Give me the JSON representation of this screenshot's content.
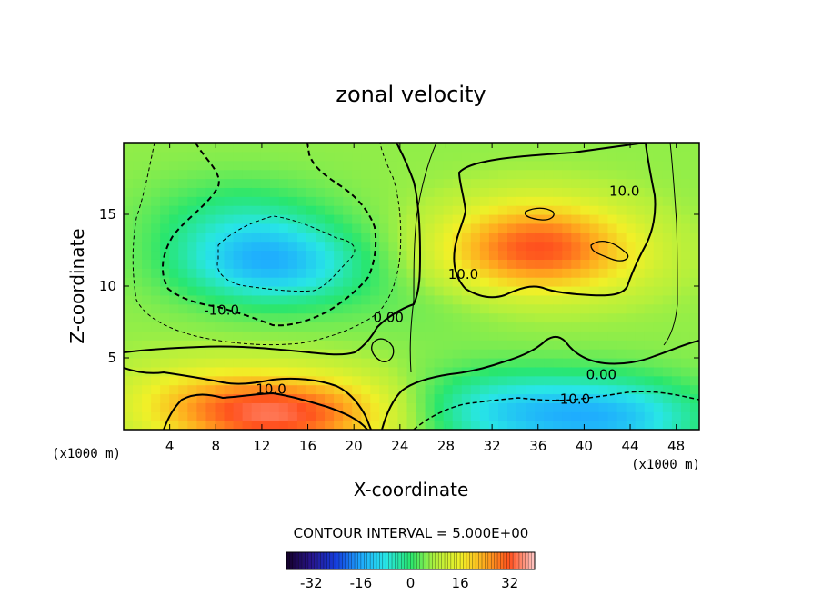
{
  "chart_data": {
    "type": "heatmap",
    "title": "zonal velocity",
    "xlabel": "X-coordinate",
    "ylabel": "Z-coordinate",
    "x_unit_label": "(x1000 m)",
    "z_unit_label": "(x1000 m)",
    "xlim": [
      0,
      50
    ],
    "ylim": [
      0,
      20
    ],
    "x_ticks": [
      "4",
      "8",
      "12",
      "16",
      "20",
      "24",
      "28",
      "32",
      "36",
      "40",
      "44",
      "48"
    ],
    "y_ticks": [
      "5",
      "10",
      "15"
    ],
    "contour_interval_text": "CONTOUR INTERVAL = 5.000E+00",
    "contour_labels": [
      {
        "text": "10.0",
        "x": 43.5,
        "z": 16.3
      },
      {
        "text": "10.0",
        "x": 29.5,
        "z": 10.5
      },
      {
        "text": "-10.0",
        "x": 8.5,
        "z": 8.0
      },
      {
        "text": "0.00",
        "x": 23.0,
        "z": 7.5
      },
      {
        "text": "10.0",
        "x": 12.8,
        "z": 2.5
      },
      {
        "text": "0.00",
        "x": 41.5,
        "z": 3.5
      },
      {
        "text": "-10.0",
        "x": 39.0,
        "z": 1.8
      }
    ],
    "colorbar": {
      "ticks": [
        "-32",
        "-16",
        "0",
        "16",
        "32"
      ],
      "tick_values": [
        -32,
        -16,
        0,
        16,
        32
      ],
      "range": [
        -40,
        40
      ]
    },
    "field_blobs": [
      {
        "x": 12,
        "z": 12,
        "v": -14
      },
      {
        "x": 14,
        "z": 11,
        "v": -7
      },
      {
        "x": 10,
        "z": 15,
        "v": -6
      },
      {
        "x": 34,
        "z": 12,
        "v": 13
      },
      {
        "x": 36,
        "z": 14,
        "v": 11
      },
      {
        "x": 40,
        "z": 12,
        "v": 8
      },
      {
        "x": 12,
        "z": 1,
        "v": 19
      },
      {
        "x": 6,
        "z": 2,
        "v": 9
      },
      {
        "x": 19,
        "z": 1.2,
        "v": 12
      },
      {
        "x": 43,
        "z": 0.8,
        "v": -16
      },
      {
        "x": 35,
        "z": 1.2,
        "v": -11
      },
      {
        "x": 29,
        "z": 1.5,
        "v": -6
      },
      {
        "x": 26,
        "z": 9,
        "v": -2
      }
    ]
  }
}
